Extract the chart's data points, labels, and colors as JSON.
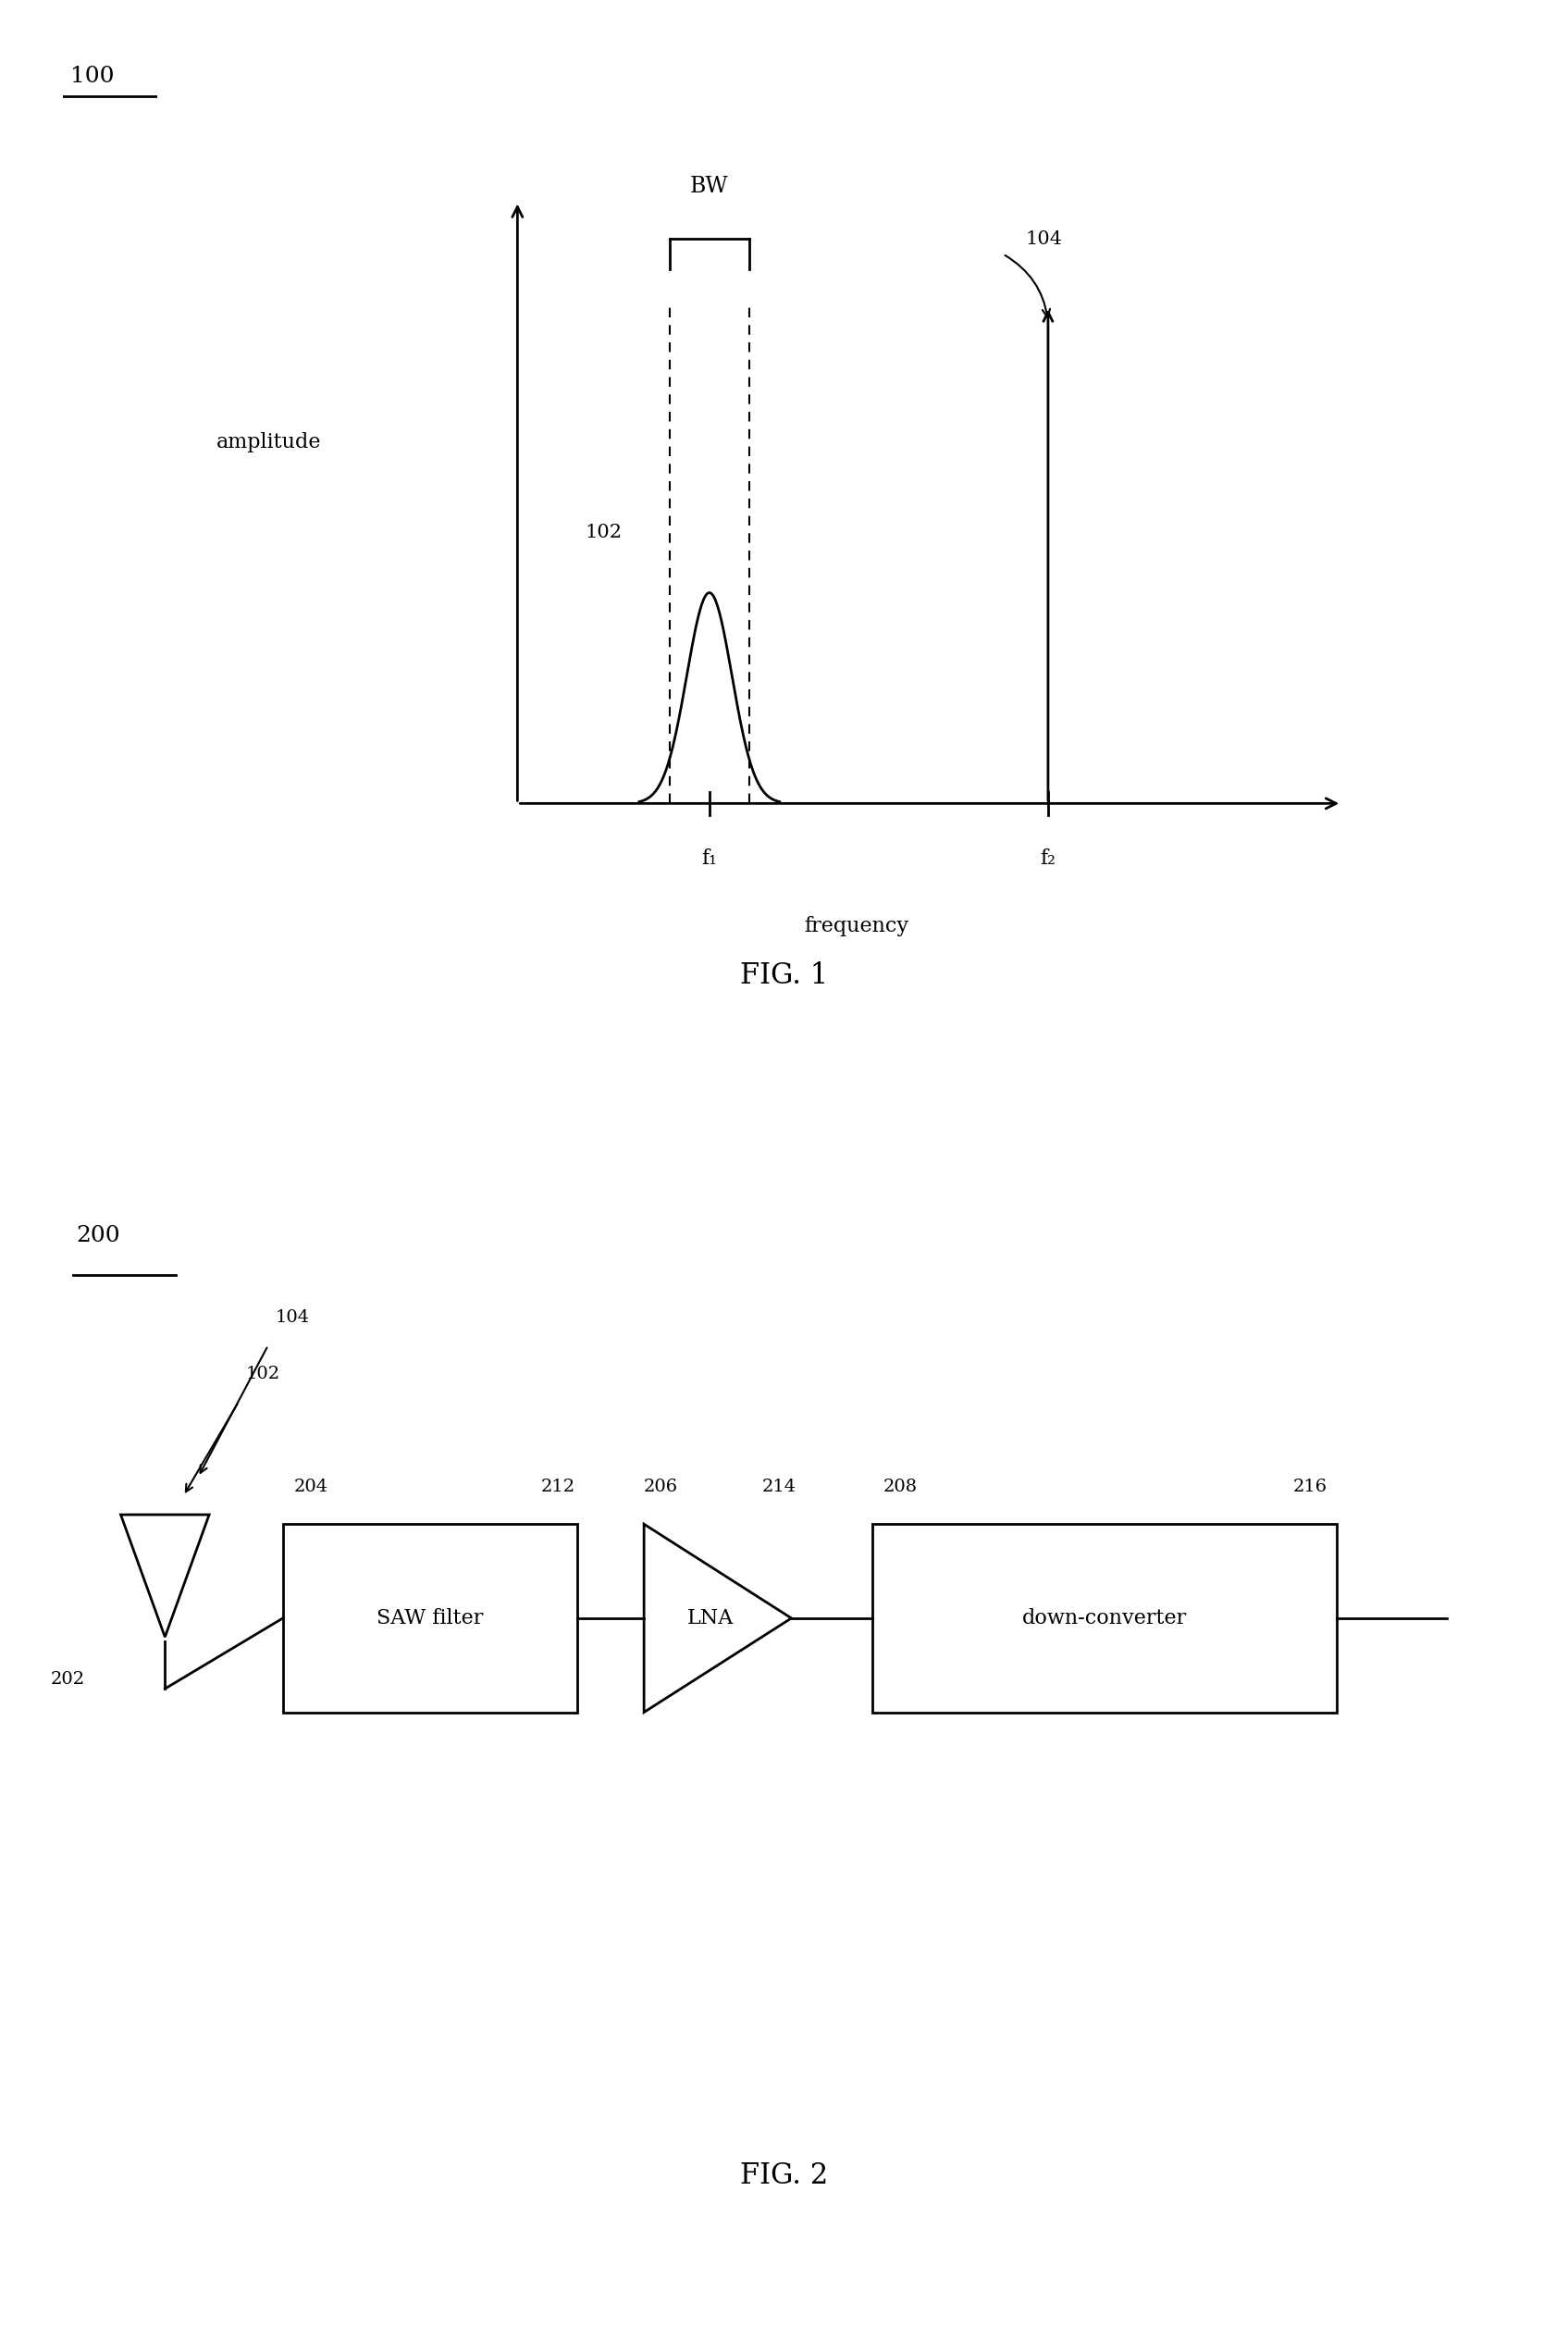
{
  "bg_color": "#ffffff",
  "fig1_label": "100",
  "fig2_label": "200",
  "fig1_caption": "FIG. 1",
  "fig2_caption": "FIG. 2",
  "amplitude_label": "amplitude",
  "frequency_label": "frequency",
  "bw_label": "BW",
  "f1_label": "f₁",
  "f2_label": "f₂",
  "label_102": "102",
  "label_104": "104",
  "label_202": "202",
  "label_204": "204",
  "label_206": "206",
  "label_208": "208",
  "label_212": "212",
  "label_214": "214",
  "label_216": "216",
  "saw_label": "SAW filter",
  "lna_label": "LNA",
  "dc_label": "down-converter",
  "font_size": 16,
  "line_color": "#000000"
}
